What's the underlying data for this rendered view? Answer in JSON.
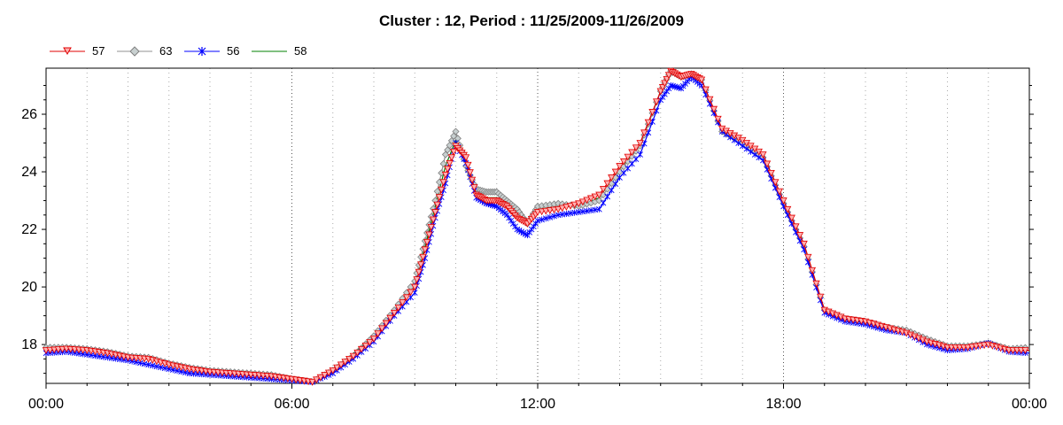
{
  "chart_data": {
    "type": "line",
    "title": "Cluster : 12, Period : 11/25/2009-11/26/2009",
    "xlabel": "",
    "ylabel": "",
    "x_tick_labels": [
      "00:00",
      "06:00",
      "12:00",
      "18:00",
      "00:00"
    ],
    "y_ticks": [
      18,
      20,
      22,
      24,
      26
    ],
    "xlim_hours": [
      0,
      24
    ],
    "ylim": [
      16.65,
      27.6
    ],
    "grid": "vertical dotted",
    "legend_position": "top-left",
    "x": [
      0,
      0.5,
      1,
      1.5,
      2,
      2.5,
      3,
      3.5,
      4,
      4.5,
      5,
      5.5,
      6,
      6.5,
      7,
      7.5,
      8,
      8.5,
      9,
      9.25,
      9.5,
      9.75,
      10,
      10.25,
      10.5,
      10.75,
      11,
      11.25,
      11.5,
      11.75,
      12,
      12.5,
      13,
      13.5,
      14,
      14.5,
      15,
      15.25,
      15.5,
      15.75,
      16,
      16.5,
      17,
      17.5,
      18,
      18.5,
      19,
      19.5,
      20,
      20.5,
      21,
      21.5,
      22,
      22.5,
      23,
      23.5,
      24
    ],
    "series": [
      {
        "name": "57",
        "color": "#e00000",
        "marker": "triangle-down",
        "values": [
          17.8,
          17.85,
          17.8,
          17.7,
          17.55,
          17.5,
          17.3,
          17.15,
          17.05,
          17.0,
          16.95,
          16.9,
          16.8,
          16.7,
          17.1,
          17.6,
          18.2,
          19.1,
          20.0,
          21.3,
          22.6,
          23.9,
          24.9,
          24.5,
          23.2,
          23.0,
          23.0,
          22.8,
          22.4,
          22.2,
          22.6,
          22.7,
          22.9,
          23.2,
          24.2,
          25.0,
          26.8,
          27.5,
          27.3,
          27.4,
          27.2,
          25.5,
          25.1,
          24.6,
          23.0,
          21.5,
          19.2,
          18.9,
          18.8,
          18.6,
          18.4,
          18.1,
          17.9,
          17.9,
          18.0,
          17.8,
          17.8
        ]
      },
      {
        "name": "63",
        "color": "#909090",
        "marker": "diamond",
        "values": [
          17.9,
          17.9,
          17.85,
          17.75,
          17.6,
          17.55,
          17.35,
          17.2,
          17.1,
          17.05,
          17.0,
          16.95,
          16.8,
          16.7,
          17.1,
          17.6,
          18.3,
          19.2,
          20.2,
          21.6,
          23.0,
          24.6,
          25.4,
          24.2,
          23.4,
          23.3,
          23.3,
          23.0,
          22.7,
          22.2,
          22.8,
          22.9,
          22.8,
          23.0,
          24.0,
          24.9,
          26.8,
          27.5,
          27.3,
          27.4,
          27.2,
          25.4,
          25.0,
          24.5,
          22.9,
          21.4,
          19.2,
          18.9,
          18.8,
          18.6,
          18.5,
          18.2,
          17.95,
          17.95,
          18.05,
          17.85,
          17.9
        ]
      },
      {
        "name": "56",
        "color": "#0000ff",
        "marker": "asterisk",
        "values": [
          17.7,
          17.75,
          17.65,
          17.55,
          17.45,
          17.3,
          17.15,
          17.0,
          16.95,
          16.9,
          16.85,
          16.8,
          16.75,
          16.7,
          17.0,
          17.5,
          18.1,
          19.0,
          19.8,
          21.0,
          22.4,
          23.6,
          25.0,
          24.3,
          23.1,
          22.9,
          22.8,
          22.5,
          22.0,
          21.8,
          22.3,
          22.5,
          22.6,
          22.7,
          23.8,
          24.6,
          26.5,
          27.0,
          26.9,
          27.3,
          27.0,
          25.4,
          24.9,
          24.4,
          22.8,
          21.3,
          19.1,
          18.8,
          18.7,
          18.5,
          18.4,
          18.0,
          17.8,
          17.85,
          18.05,
          17.75,
          17.7
        ]
      },
      {
        "name": "58",
        "color": "#008000",
        "marker": "none",
        "values": [
          17.85,
          17.9,
          17.8,
          17.7,
          17.55,
          17.5,
          17.3,
          17.15,
          17.05,
          17.0,
          16.95,
          16.9,
          16.85,
          16.75,
          17.1,
          17.7,
          18.3,
          19.1,
          20.1,
          21.4,
          22.8,
          24.2,
          25.1,
          24.3,
          23.2,
          23.1,
          23.1,
          22.9,
          22.5,
          22.2,
          22.7,
          22.8,
          22.8,
          23.1,
          24.1,
          24.9,
          26.8,
          27.5,
          27.3,
          27.4,
          27.2,
          25.4,
          25.0,
          24.5,
          22.9,
          21.4,
          19.2,
          18.9,
          18.8,
          18.6,
          18.45,
          18.15,
          17.9,
          17.9,
          18.0,
          17.8,
          17.8
        ]
      }
    ]
  }
}
